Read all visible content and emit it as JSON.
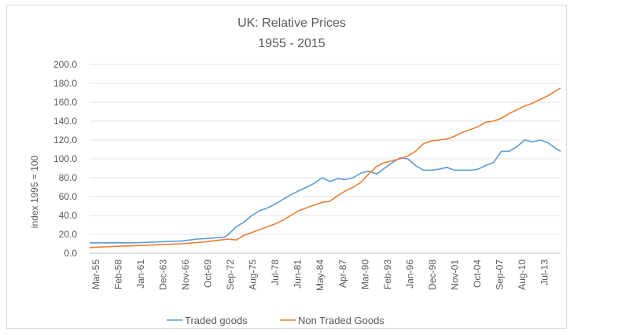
{
  "chart_data": {
    "type": "line",
    "title": "UK: Relative Prices",
    "subtitle": "1955 - 2015",
    "xlabel": "",
    "ylabel": "index 1995 = 100",
    "ylim": [
      0,
      200
    ],
    "yticks": [
      "0.0",
      "20.0",
      "40.0",
      "60.0",
      "80.0",
      "100.0",
      "120.0",
      "140.0",
      "160.0",
      "180.0",
      "200.0"
    ],
    "xticks": [
      "Mar-55",
      "Feb-58",
      "Jan-61",
      "Dec-63",
      "Nov-66",
      "Oct-69",
      "Sep-72",
      "Aug-75",
      "Jul-78",
      "Jun-81",
      "May-84",
      "Apr-87",
      "Mar-90",
      "Feb-93",
      "Jan-96",
      "Dec-98",
      "Nov-01",
      "Oct-04",
      "Sep-07",
      "Aug-10",
      "Jul-13"
    ],
    "x_start_year": 1955.2,
    "x_end_year": 2015.6,
    "grid": true,
    "legend_position": "bottom",
    "series": [
      {
        "name": "Traded goods",
        "color": "#5b9bd5",
        "x": [
          1955.2,
          1958,
          1961,
          1964,
          1967,
          1969,
          1971,
          1972.5,
          1973,
          1974,
          1975,
          1976,
          1977,
          1978,
          1979,
          1980,
          1981,
          1982,
          1983,
          1984,
          1985,
          1985.5,
          1986,
          1987,
          1988,
          1989,
          1990,
          1991,
          1992,
          1993,
          1994,
          1995,
          1996,
          1997,
          1998,
          1999,
          2000,
          2001,
          2002,
          2003,
          2004,
          2005,
          2006,
          2007,
          2008,
          2009,
          2010,
          2011,
          2012,
          2013,
          2014,
          2015,
          2015.6
        ],
        "values": [
          11,
          11,
          11,
          12,
          13,
          15,
          16,
          17,
          20,
          28,
          33,
          40,
          45,
          48,
          52,
          57,
          62,
          66,
          70,
          74,
          80,
          78,
          76,
          79,
          78,
          80,
          85,
          87,
          84,
          90,
          96,
          101,
          100,
          93,
          88,
          88,
          89,
          91,
          88,
          88,
          88,
          89,
          93,
          96,
          108,
          108,
          113,
          120,
          118,
          120,
          117,
          111,
          108
        ]
      },
      {
        "name": "Non Traded Goods",
        "color": "#ed7d31",
        "x": [
          1955.2,
          1958,
          1961,
          1964,
          1967,
          1970,
          1972,
          1973,
          1974,
          1975,
          1976,
          1977,
          1978,
          1979,
          1980,
          1981,
          1982,
          1983,
          1984,
          1985,
          1986,
          1987,
          1988,
          1989,
          1990,
          1991,
          1992,
          1993,
          1994,
          1995,
          1996,
          1997,
          1998,
          1999,
          2000,
          2001,
          2002,
          2003,
          2004,
          2005,
          2006,
          2007,
          2008,
          2009,
          2010,
          2011,
          2012,
          2013,
          2014,
          2015,
          2015.6
        ],
        "values": [
          6,
          7,
          8,
          9,
          10,
          12,
          14,
          15,
          14,
          19,
          22,
          25,
          28,
          31,
          35,
          40,
          45,
          48,
          51,
          54,
          55,
          61,
          66,
          70,
          75,
          84,
          92,
          96,
          98,
          100,
          103,
          108,
          116,
          119,
          120,
          121,
          124,
          128,
          131,
          134,
          139,
          140,
          143,
          148,
          152,
          156,
          159,
          163,
          167,
          172,
          175
        ]
      }
    ]
  }
}
